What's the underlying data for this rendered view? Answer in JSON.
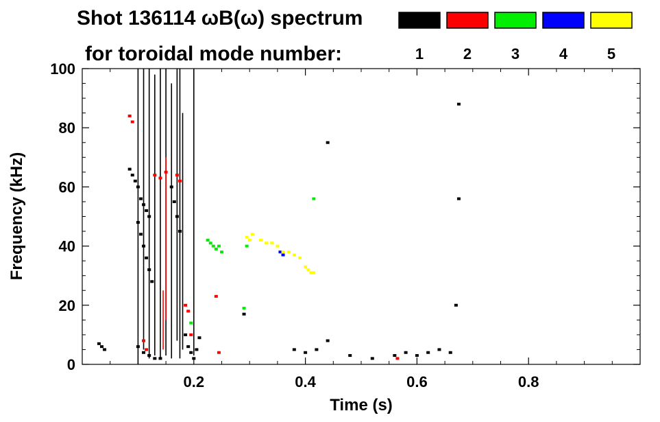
{
  "chart_data": {
    "type": "heatmap",
    "title_line1": "Shot 136114 ωB(ω) spectrum",
    "title_line2": "for toroidal mode number:",
    "xlabel": "Time (s)",
    "ylabel": "Frequency (kHz)",
    "xlim": [
      0.0,
      1.0
    ],
    "ylim": [
      0,
      100
    ],
    "x_ticks": [
      0.2,
      0.4,
      0.6,
      0.8
    ],
    "x_tick_labels": [
      "0.2",
      "0.4",
      "0.6",
      "0.8"
    ],
    "y_ticks": [
      0,
      20,
      40,
      60,
      80,
      100
    ],
    "y_tick_labels": [
      "0",
      "20",
      "40",
      "60",
      "80",
      "100"
    ],
    "legend": [
      {
        "label": "1",
        "color": "#000000"
      },
      {
        "label": "2",
        "color": "#ff0000"
      },
      {
        "label": "3",
        "color": "#00ee00"
      },
      {
        "label": "4",
        "color": "#0000ff"
      },
      {
        "label": "5",
        "color": "#ffff00"
      }
    ],
    "series": [
      {
        "mode": "1",
        "color": "#000000",
        "points": [
          [
            0.03,
            7
          ],
          [
            0.035,
            6
          ],
          [
            0.04,
            5
          ],
          [
            0.085,
            66
          ],
          [
            0.09,
            64
          ],
          [
            0.095,
            62
          ],
          [
            0.1,
            60
          ],
          [
            0.105,
            56
          ],
          [
            0.11,
            54
          ],
          [
            0.115,
            52
          ],
          [
            0.12,
            50
          ],
          [
            0.1,
            48
          ],
          [
            0.105,
            44
          ],
          [
            0.11,
            40
          ],
          [
            0.115,
            36
          ],
          [
            0.12,
            32
          ],
          [
            0.125,
            28
          ],
          [
            0.1,
            6
          ],
          [
            0.11,
            4
          ],
          [
            0.12,
            3
          ],
          [
            0.13,
            2
          ],
          [
            0.14,
            2
          ],
          [
            0.16,
            60
          ],
          [
            0.165,
            55
          ],
          [
            0.17,
            50
          ],
          [
            0.175,
            45
          ],
          [
            0.185,
            10
          ],
          [
            0.19,
            6
          ],
          [
            0.195,
            4
          ],
          [
            0.2,
            2
          ],
          [
            0.205,
            5
          ],
          [
            0.21,
            9
          ],
          [
            0.29,
            17
          ],
          [
            0.38,
            5
          ],
          [
            0.4,
            4
          ],
          [
            0.42,
            5
          ],
          [
            0.44,
            8
          ],
          [
            0.48,
            3
          ],
          [
            0.52,
            2
          ],
          [
            0.56,
            3
          ],
          [
            0.58,
            4
          ],
          [
            0.6,
            3
          ],
          [
            0.62,
            4
          ],
          [
            0.64,
            5
          ],
          [
            0.66,
            4
          ],
          [
            0.67,
            20
          ],
          [
            0.675,
            88
          ],
          [
            0.675,
            56
          ],
          [
            0.44,
            75
          ]
        ],
        "bands": [
          [
            0.1,
            0,
            100
          ],
          [
            0.12,
            2,
            100
          ],
          [
            0.14,
            2,
            100
          ],
          [
            0.16,
            2,
            95
          ],
          [
            0.175,
            2,
            100
          ],
          [
            0.18,
            5,
            85
          ],
          [
            0.2,
            3,
            100
          ],
          [
            0.11,
            5,
            100
          ],
          [
            0.13,
            3,
            98
          ],
          [
            0.15,
            3,
            100
          ],
          [
            0.17,
            8,
            100
          ]
        ]
      },
      {
        "mode": "2",
        "color": "#ff0000",
        "points": [
          [
            0.085,
            84
          ],
          [
            0.09,
            82
          ],
          [
            0.13,
            64
          ],
          [
            0.14,
            63
          ],
          [
            0.15,
            65
          ],
          [
            0.17,
            64
          ],
          [
            0.175,
            62
          ],
          [
            0.185,
            20
          ],
          [
            0.19,
            18
          ],
          [
            0.11,
            8
          ],
          [
            0.115,
            5
          ],
          [
            0.195,
            10
          ],
          [
            0.24,
            23
          ],
          [
            0.245,
            4
          ],
          [
            0.565,
            2
          ]
        ],
        "bands": [
          [
            0.15,
            15,
            70
          ],
          [
            0.145,
            5,
            25
          ]
        ]
      },
      {
        "mode": "3",
        "color": "#00ee00",
        "points": [
          [
            0.225,
            42
          ],
          [
            0.23,
            41
          ],
          [
            0.235,
            40
          ],
          [
            0.24,
            39
          ],
          [
            0.245,
            40
          ],
          [
            0.25,
            38
          ],
          [
            0.415,
            56
          ],
          [
            0.295,
            40
          ],
          [
            0.29,
            19
          ],
          [
            0.195,
            14
          ]
        ],
        "bands": []
      },
      {
        "mode": "4",
        "color": "#0000ff",
        "points": [
          [
            0.355,
            38
          ],
          [
            0.36,
            37
          ]
        ],
        "bands": []
      },
      {
        "mode": "5",
        "color": "#ffff00",
        "points": [
          [
            0.295,
            43
          ],
          [
            0.3,
            42
          ],
          [
            0.305,
            44
          ],
          [
            0.32,
            42
          ],
          [
            0.33,
            41
          ],
          [
            0.34,
            41
          ],
          [
            0.35,
            40
          ],
          [
            0.36,
            38
          ],
          [
            0.37,
            38
          ],
          [
            0.38,
            37
          ],
          [
            0.39,
            36
          ],
          [
            0.4,
            33
          ],
          [
            0.405,
            32
          ],
          [
            0.41,
            31
          ],
          [
            0.415,
            31
          ]
        ],
        "bands": []
      }
    ]
  }
}
